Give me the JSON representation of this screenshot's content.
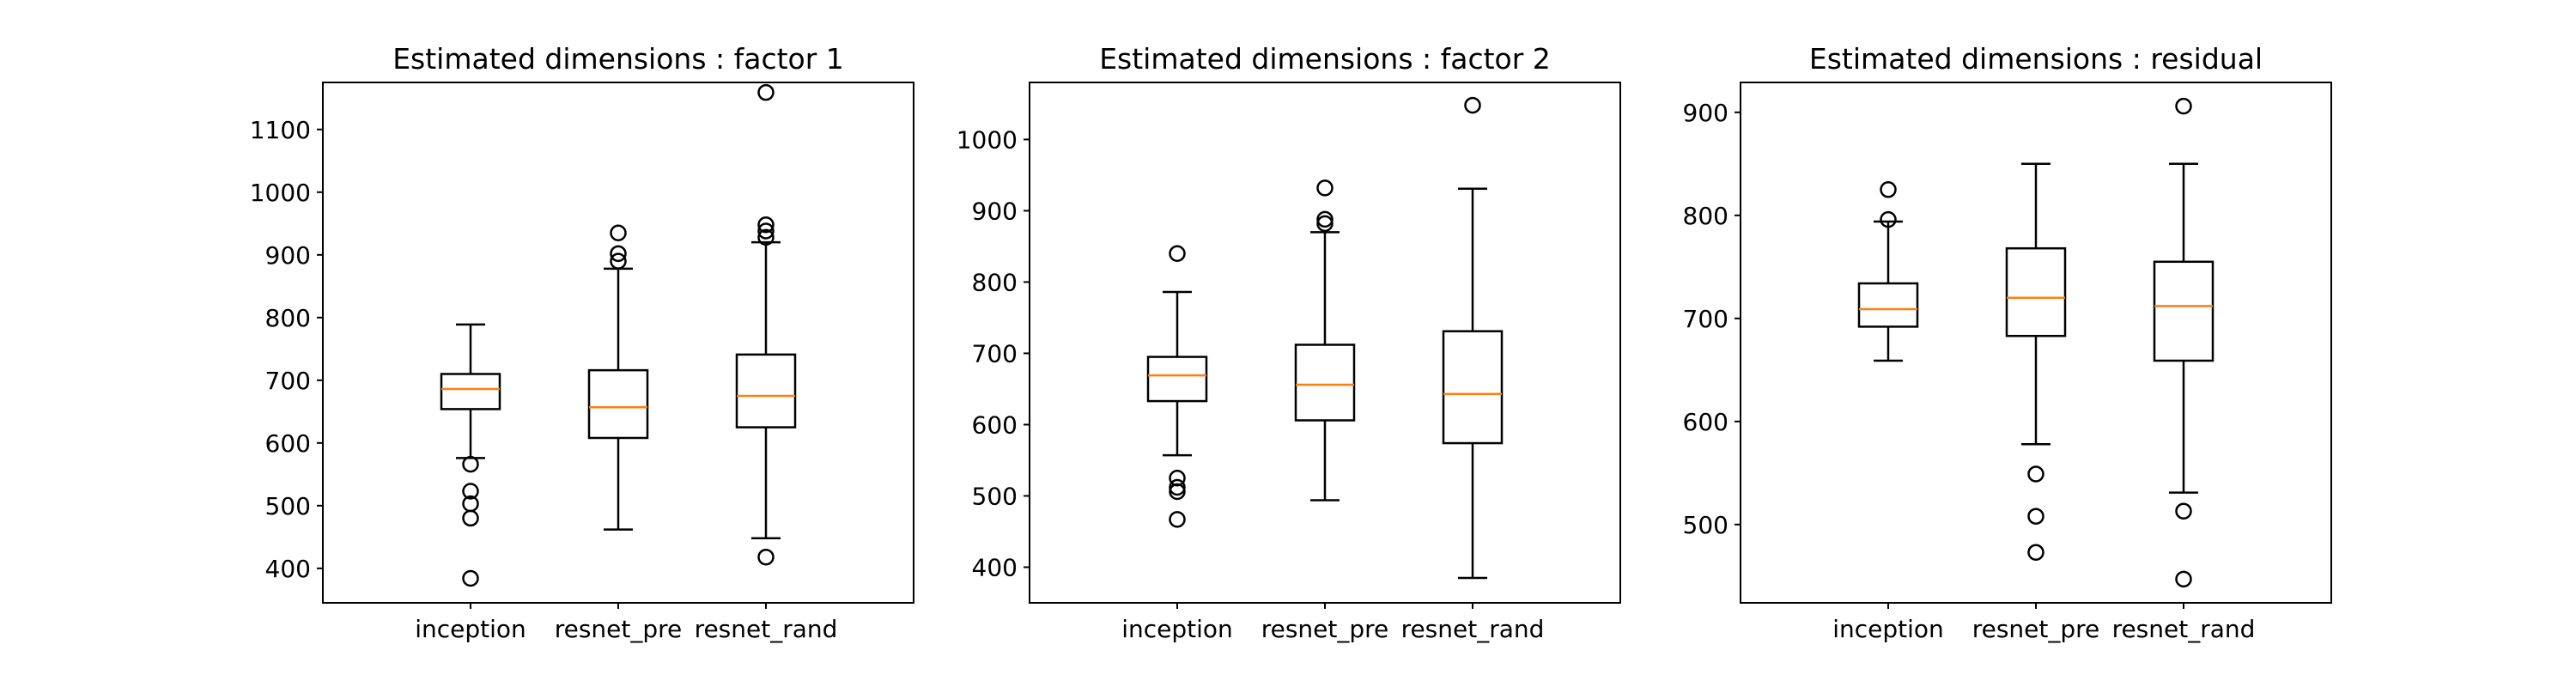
{
  "chart_data": [
    {
      "type": "box",
      "title": "Estimated dimensions : factor 1",
      "categories": [
        "inception",
        "resnet_pre",
        "resnet_rand"
      ],
      "ylim": [
        345,
        1175
      ],
      "yticks": [
        400,
        500,
        600,
        700,
        800,
        900,
        1000,
        1100
      ],
      "boxes": [
        {
          "whisker_low": 576,
          "q1": 654,
          "median": 686,
          "q3": 710,
          "whisker_high": 789,
          "fliers": [
            384,
            480,
            503,
            523,
            566
          ]
        },
        {
          "whisker_low": 462,
          "q1": 608,
          "median": 657,
          "q3": 716,
          "whisker_high": 878,
          "fliers": [
            890,
            902,
            935
          ]
        },
        {
          "whisker_low": 448,
          "q1": 625,
          "median": 675,
          "q3": 741,
          "whisker_high": 920,
          "fliers": [
            418,
            928,
            938,
            948,
            1159
          ]
        }
      ]
    },
    {
      "type": "box",
      "title": "Estimated dimensions : factor 2",
      "categories": [
        "inception",
        "resnet_pre",
        "resnet_rand"
      ],
      "ylim": [
        350,
        1080
      ],
      "yticks": [
        400,
        500,
        600,
        700,
        800,
        900,
        1000
      ],
      "boxes": [
        {
          "whisker_low": 557,
          "q1": 633,
          "median": 669,
          "q3": 695,
          "whisker_high": 786,
          "fliers": [
            467,
            506,
            512,
            525,
            840
          ]
        },
        {
          "whisker_low": 494,
          "q1": 606,
          "median": 656,
          "q3": 712,
          "whisker_high": 870,
          "fliers": [
            882,
            888,
            932
          ]
        },
        {
          "whisker_low": 385,
          "q1": 574,
          "median": 643,
          "q3": 731,
          "whisker_high": 931,
          "fliers": [
            1048
          ]
        }
      ]
    },
    {
      "type": "box",
      "title": "Estimated dimensions :  residual",
      "categories": [
        "inception",
        "resnet_pre",
        "resnet_rand"
      ],
      "ylim": [
        424,
        929
      ],
      "yticks": [
        500,
        600,
        700,
        800,
        900
      ],
      "boxes": [
        {
          "whisker_low": 659,
          "q1": 692,
          "median": 709,
          "q3": 734,
          "whisker_high": 794,
          "fliers": [
            796,
            825
          ]
        },
        {
          "whisker_low": 578,
          "q1": 683,
          "median": 720,
          "q3": 768,
          "whisker_high": 850,
          "fliers": [
            473,
            508,
            549
          ]
        },
        {
          "whisker_low": 531,
          "q1": 659,
          "median": 712,
          "q3": 755,
          "whisker_high": 850,
          "fliers": [
            447,
            513,
            906
          ]
        }
      ]
    }
  ],
  "colors": {
    "median": "#ff7f0e",
    "box": "#000000",
    "background": "#ffffff"
  }
}
